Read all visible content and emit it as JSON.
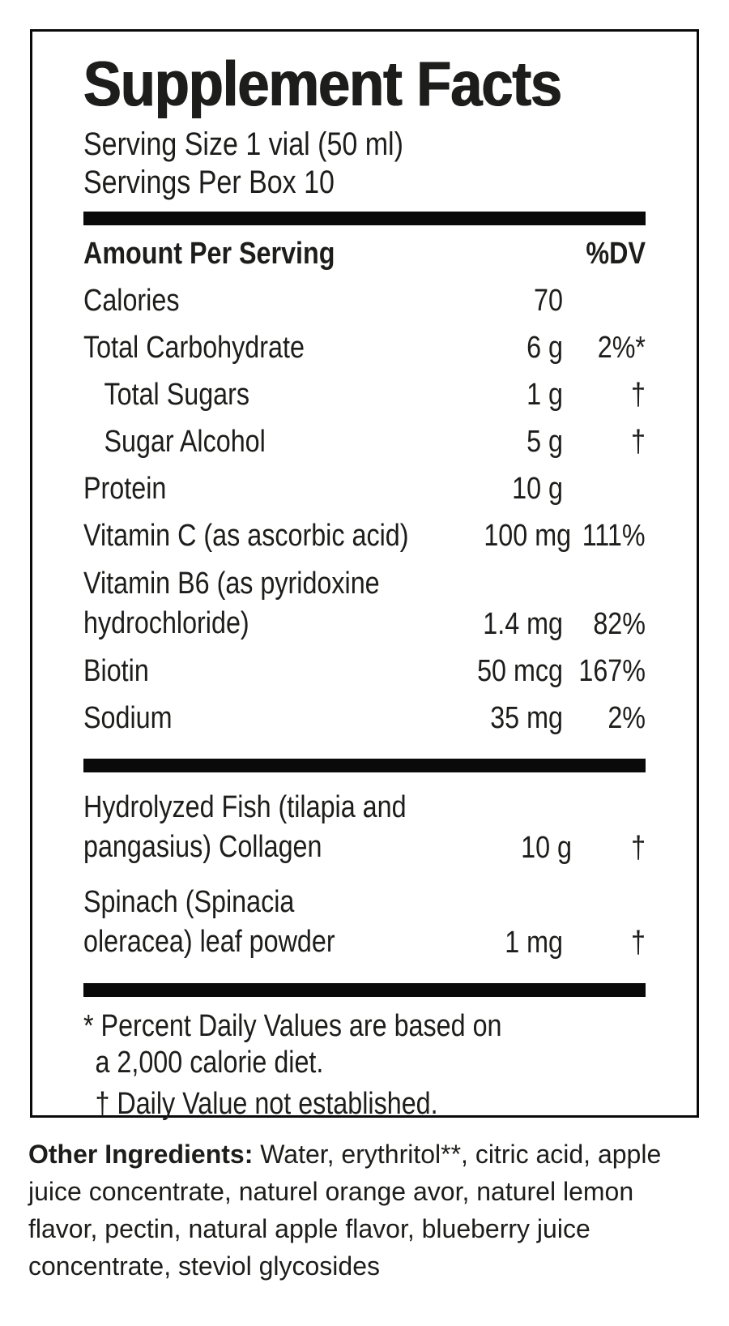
{
  "label": {
    "title": "Supplement Facts",
    "serving_size": "Serving Size 1 vial (50 ml)",
    "servings_per_box": "Servings Per Box 10",
    "header": {
      "amount_per_serving": "Amount Per Serving",
      "dv": "%DV"
    },
    "rows": [
      {
        "name": "Calories",
        "amount": "70",
        "dv": ""
      },
      {
        "name": "Total Carbohydrate",
        "amount": "6 g",
        "dv": "2%*"
      },
      {
        "name": "Total Sugars",
        "amount": "1 g",
        "dv": "†"
      },
      {
        "name": "Sugar Alcohol",
        "amount": "5 g",
        "dv": "†"
      },
      {
        "name": "Protein",
        "amount": "10 g",
        "dv": ""
      },
      {
        "name": "Vitamin C (as ascorbic acid)",
        "amount": "100 mg",
        "dv": "111%"
      },
      {
        "name": "Vitamin B6 (as pyridoxine\nhydrochloride)",
        "amount": "1.4 mg",
        "dv": "82%"
      },
      {
        "name": "Biotin",
        "amount": "50 mcg",
        "dv": "167%"
      },
      {
        "name": "Sodium",
        "amount": "35 mg",
        "dv": "2%"
      }
    ],
    "other_rows": [
      {
        "name": "Hydrolyzed Fish (tilapia and\npangasius) Collagen",
        "amount": "10 g",
        "dv": "†"
      },
      {
        "name": "Spinach (Spinacia\noleracea) leaf powder",
        "amount": "1 mg",
        "dv": "†"
      }
    ],
    "footnotes": [
      {
        "text": "* Percent Daily Values are based on\na 2,000 calorie diet."
      },
      {
        "text": "† Daily Value not established."
      }
    ]
  },
  "other_ingredients": {
    "lead": "Other Ingredients:",
    "text": " Water, erythritol**, citric acid, apple juice concentrate, naturel orange avor, naturel lemon flavor, pectin, natural apple flavor, blueberry juice concentrate, steviol glycosides"
  },
  "colors": {
    "text": "#1d1d1b",
    "background": "#ffffff",
    "bar": "#0a0a0a"
  }
}
